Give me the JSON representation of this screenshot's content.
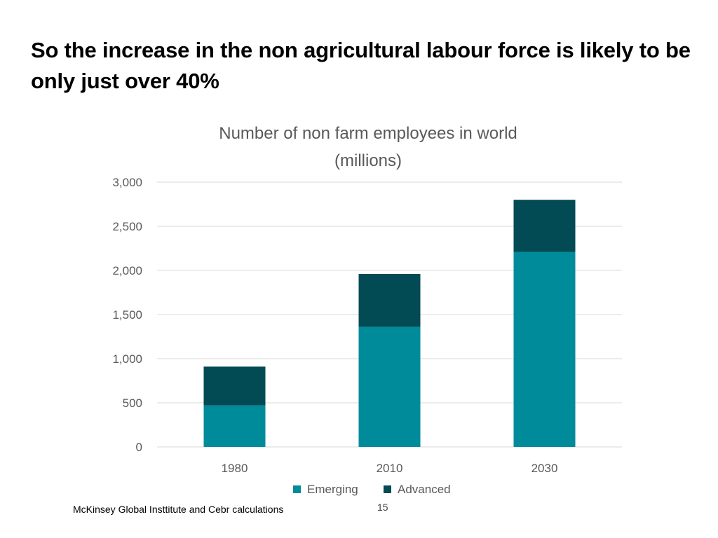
{
  "slide": {
    "title": "So the increase in the non agricultural labour force is likely to be only just over 40%",
    "source": "McKinsey Global Insttitute and Cebr calculations",
    "page_number": "15"
  },
  "chart_data": {
    "type": "bar",
    "stacked": true,
    "title": "Number of non farm employees in world",
    "subtitle": "(millions)",
    "xlabel": "",
    "ylabel": "",
    "categories": [
      "1980",
      "2010",
      "2030"
    ],
    "series": [
      {
        "name": "Emerging",
        "values": [
          470,
          1360,
          2210
        ],
        "color": "#008B9A"
      },
      {
        "name": "Advanced",
        "values": [
          440,
          600,
          590
        ],
        "color": "#024A54"
      }
    ],
    "ylim": [
      0,
      3000
    ],
    "yticks": [
      0,
      500,
      1000,
      1500,
      2000,
      2500,
      3000
    ],
    "ytick_labels": [
      "0",
      "500",
      "1,000",
      "1,500",
      "2,000",
      "2,500",
      "3,000"
    ],
    "grid": true,
    "legend_position": "bottom"
  }
}
